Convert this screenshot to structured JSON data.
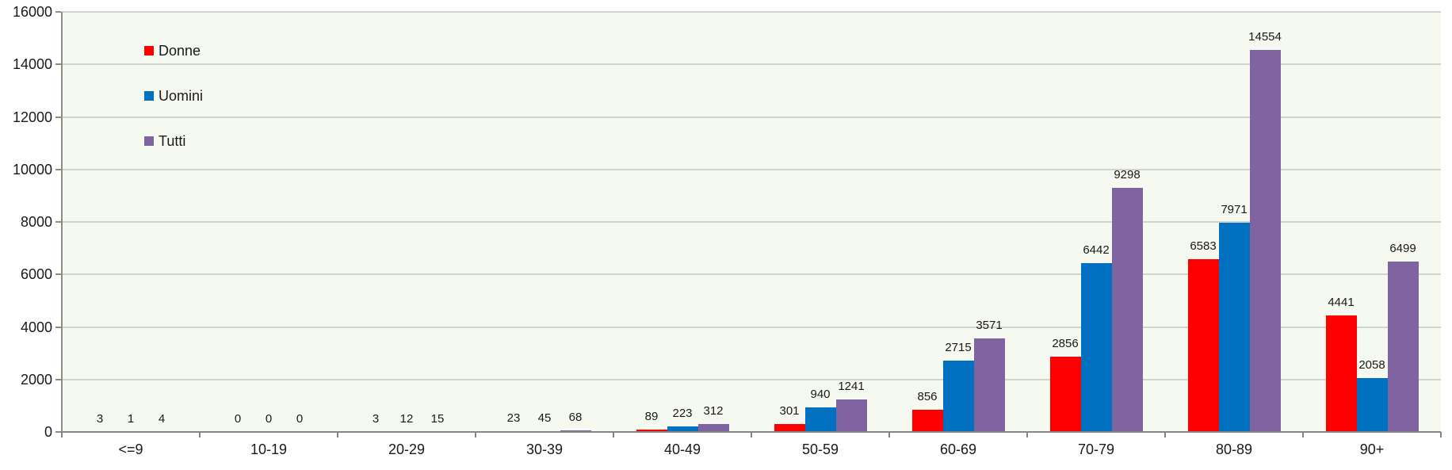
{
  "chart_data": {
    "type": "bar",
    "title": "",
    "categories": [
      "<=9",
      "10-19",
      "20-29",
      "30-39",
      "40-49",
      "50-59",
      "60-69",
      "70-79",
      "80-89",
      "90+"
    ],
    "series": [
      {
        "name": "Donne",
        "color": "#fe0000",
        "values": [
          3,
          0,
          3,
          23,
          89,
          301,
          856,
          2856,
          6583,
          4441
        ]
      },
      {
        "name": "Uomini",
        "color": "#0071c1",
        "values": [
          1,
          0,
          12,
          45,
          223,
          940,
          2715,
          6442,
          7971,
          2058
        ]
      },
      {
        "name": "Tutti",
        "color": "#8064a2",
        "values": [
          4,
          0,
          15,
          68,
          312,
          1241,
          3571,
          9298,
          14554,
          6499
        ]
      }
    ],
    "xlabel": "",
    "ylabel": "",
    "ylim": [
      0,
      16000
    ],
    "y_tick_step": 2000,
    "y_tick_labels": [
      "0",
      "2000",
      "4000",
      "6000",
      "8000",
      "10000",
      "12000",
      "14000",
      "16000"
    ],
    "grid": true,
    "data_labels": true,
    "legend_position": "top-left-inside"
  },
  "style": {
    "plot_background": "#f6f9ef",
    "gridline_color": "#d2d5cc",
    "axis_color": "#84877e",
    "text_color": "#1a1a1a"
  }
}
